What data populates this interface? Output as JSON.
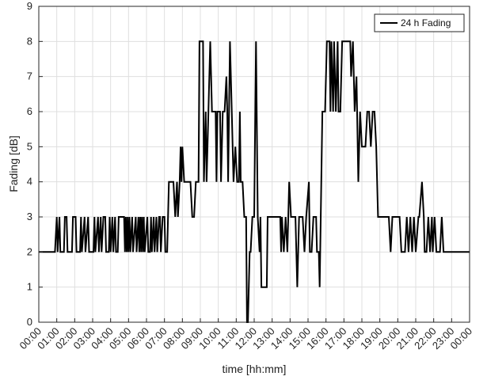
{
  "chart_data": {
    "type": "line",
    "xlabel": "time [hh:mm]",
    "ylabel": "Fading [dB]",
    "xlim": [
      0,
      24
    ],
    "ylim": [
      0,
      9
    ],
    "grid": true,
    "legend": {
      "position": "top-right"
    },
    "x_ticks": [
      "00:00",
      "01:00",
      "02:00",
      "03:00",
      "04:00",
      "05:00",
      "06:00",
      "07:00",
      "08:00",
      "09:00",
      "10:00",
      "11:00",
      "12:00",
      "13:00",
      "14:00",
      "15:00",
      "16:00",
      "17:00",
      "18:00",
      "19:00",
      "20:00",
      "21:00",
      "22:00",
      "23:00",
      "00:00"
    ],
    "y_ticks": [
      "0",
      "1",
      "2",
      "3",
      "4",
      "5",
      "6",
      "7",
      "8",
      "9"
    ],
    "series": [
      {
        "name": "24 h Fading",
        "color": "#000000",
        "points": [
          [
            0.0,
            2
          ],
          [
            0.9,
            2
          ],
          [
            1.0,
            3
          ],
          [
            1.05,
            2
          ],
          [
            1.15,
            3
          ],
          [
            1.2,
            2
          ],
          [
            1.4,
            2
          ],
          [
            1.45,
            3
          ],
          [
            1.55,
            3
          ],
          [
            1.6,
            2
          ],
          [
            1.85,
            2
          ],
          [
            1.9,
            3
          ],
          [
            2.05,
            3
          ],
          [
            2.1,
            2
          ],
          [
            2.3,
            2
          ],
          [
            2.35,
            3
          ],
          [
            2.4,
            2
          ],
          [
            2.55,
            3
          ],
          [
            2.6,
            2
          ],
          [
            2.75,
            3
          ],
          [
            2.8,
            2
          ],
          [
            3.05,
            2
          ],
          [
            3.1,
            3
          ],
          [
            3.15,
            2
          ],
          [
            3.3,
            3
          ],
          [
            3.35,
            2
          ],
          [
            3.45,
            3
          ],
          [
            3.5,
            2
          ],
          [
            3.6,
            3
          ],
          [
            3.7,
            3
          ],
          [
            3.75,
            2
          ],
          [
            3.9,
            2
          ],
          [
            3.95,
            3
          ],
          [
            4.0,
            2
          ],
          [
            4.1,
            3
          ],
          [
            4.15,
            2
          ],
          [
            4.25,
            3
          ],
          [
            4.3,
            2
          ],
          [
            4.4,
            2
          ],
          [
            4.45,
            3
          ],
          [
            4.75,
            3
          ],
          [
            4.8,
            2
          ],
          [
            4.85,
            3
          ],
          [
            4.9,
            2
          ],
          [
            4.95,
            3
          ],
          [
            5.0,
            2
          ],
          [
            5.05,
            3
          ],
          [
            5.1,
            2
          ],
          [
            5.2,
            3
          ],
          [
            5.25,
            2
          ],
          [
            5.4,
            3
          ],
          [
            5.45,
            2
          ],
          [
            5.55,
            3
          ],
          [
            5.6,
            2
          ],
          [
            5.65,
            3
          ],
          [
            5.7,
            2
          ],
          [
            5.75,
            3
          ],
          [
            5.8,
            2
          ],
          [
            5.85,
            3
          ],
          [
            5.9,
            2
          ],
          [
            6.05,
            3
          ],
          [
            6.1,
            2
          ],
          [
            6.2,
            2
          ],
          [
            6.25,
            3
          ],
          [
            6.3,
            2
          ],
          [
            6.4,
            3
          ],
          [
            6.45,
            2
          ],
          [
            6.55,
            3
          ],
          [
            6.6,
            2
          ],
          [
            6.7,
            3
          ],
          [
            6.75,
            3
          ],
          [
            6.8,
            2
          ],
          [
            6.9,
            3
          ],
          [
            7.0,
            3
          ],
          [
            7.05,
            2
          ],
          [
            7.15,
            2
          ],
          [
            7.25,
            4
          ],
          [
            7.5,
            4
          ],
          [
            7.6,
            3
          ],
          [
            7.7,
            4
          ],
          [
            7.75,
            3
          ],
          [
            7.85,
            4
          ],
          [
            7.9,
            5
          ],
          [
            7.95,
            4
          ],
          [
            8.0,
            5
          ],
          [
            8.1,
            4
          ],
          [
            8.45,
            4
          ],
          [
            8.55,
            3
          ],
          [
            8.65,
            3
          ],
          [
            8.75,
            4
          ],
          [
            8.9,
            4
          ],
          [
            8.95,
            8
          ],
          [
            9.15,
            8
          ],
          [
            9.2,
            4
          ],
          [
            9.3,
            6
          ],
          [
            9.35,
            4
          ],
          [
            9.45,
            6
          ],
          [
            9.55,
            8
          ],
          [
            9.65,
            6
          ],
          [
            9.85,
            6
          ],
          [
            9.9,
            4
          ],
          [
            9.95,
            6
          ],
          [
            10.1,
            6
          ],
          [
            10.15,
            4
          ],
          [
            10.25,
            6
          ],
          [
            10.35,
            6
          ],
          [
            10.45,
            7
          ],
          [
            10.5,
            6
          ],
          [
            10.55,
            4
          ],
          [
            10.65,
            8
          ],
          [
            10.75,
            6
          ],
          [
            10.85,
            4
          ],
          [
            10.95,
            5
          ],
          [
            11.05,
            4
          ],
          [
            11.15,
            4
          ],
          [
            11.2,
            6
          ],
          [
            11.25,
            4
          ],
          [
            11.35,
            4
          ],
          [
            11.45,
            3
          ],
          [
            11.55,
            3
          ],
          [
            11.6,
            0
          ],
          [
            11.65,
            0
          ],
          [
            11.75,
            2
          ],
          [
            11.8,
            2
          ],
          [
            11.9,
            3
          ],
          [
            12.0,
            3
          ],
          [
            12.1,
            8
          ],
          [
            12.2,
            3
          ],
          [
            12.3,
            2
          ],
          [
            12.35,
            3
          ],
          [
            12.4,
            1
          ],
          [
            12.5,
            1
          ],
          [
            12.7,
            1
          ],
          [
            12.75,
            3
          ],
          [
            13.2,
            3
          ],
          [
            13.3,
            3
          ],
          [
            13.45,
            3
          ],
          [
            13.5,
            2
          ],
          [
            13.55,
            3
          ],
          [
            13.65,
            2
          ],
          [
            13.75,
            3
          ],
          [
            13.85,
            2
          ],
          [
            13.95,
            4
          ],
          [
            14.05,
            3
          ],
          [
            14.15,
            3
          ],
          [
            14.3,
            3
          ],
          [
            14.4,
            1
          ],
          [
            14.5,
            3
          ],
          [
            14.7,
            3
          ],
          [
            14.8,
            2
          ],
          [
            14.9,
            3
          ],
          [
            15.05,
            4
          ],
          [
            15.1,
            2
          ],
          [
            15.2,
            2
          ],
          [
            15.3,
            3
          ],
          [
            15.45,
            3
          ],
          [
            15.5,
            2
          ],
          [
            15.6,
            2
          ],
          [
            15.65,
            1
          ],
          [
            15.8,
            6
          ],
          [
            15.95,
            6
          ],
          [
            16.05,
            8
          ],
          [
            16.2,
            8
          ],
          [
            16.25,
            6
          ],
          [
            16.3,
            8
          ],
          [
            16.4,
            6
          ],
          [
            16.45,
            8
          ],
          [
            16.55,
            6
          ],
          [
            16.65,
            8
          ],
          [
            16.7,
            6
          ],
          [
            16.8,
            6
          ],
          [
            16.9,
            8
          ],
          [
            17.05,
            8
          ],
          [
            17.1,
            8
          ],
          [
            17.35,
            8
          ],
          [
            17.4,
            7
          ],
          [
            17.5,
            8
          ],
          [
            17.6,
            6
          ],
          [
            17.7,
            7
          ],
          [
            17.8,
            4
          ],
          [
            17.9,
            6
          ],
          [
            18.0,
            5
          ],
          [
            18.2,
            5
          ],
          [
            18.3,
            6
          ],
          [
            18.4,
            6
          ],
          [
            18.5,
            5
          ],
          [
            18.6,
            6
          ],
          [
            18.7,
            6
          ],
          [
            18.8,
            5
          ],
          [
            18.9,
            3
          ],
          [
            19.0,
            3
          ],
          [
            19.5,
            3
          ],
          [
            19.6,
            2
          ],
          [
            19.7,
            3
          ],
          [
            20.0,
            3
          ],
          [
            20.1,
            3
          ],
          [
            20.2,
            2
          ],
          [
            20.4,
            2
          ],
          [
            20.5,
            3
          ],
          [
            20.6,
            2
          ],
          [
            20.7,
            3
          ],
          [
            20.8,
            2
          ],
          [
            20.9,
            3
          ],
          [
            21.0,
            2
          ],
          [
            21.15,
            3
          ],
          [
            21.2,
            3
          ],
          [
            21.35,
            4
          ],
          [
            21.45,
            3
          ],
          [
            21.5,
            2
          ],
          [
            21.6,
            2
          ],
          [
            21.7,
            3
          ],
          [
            21.8,
            2
          ],
          [
            21.9,
            3
          ],
          [
            21.95,
            2
          ],
          [
            22.05,
            3
          ],
          [
            22.15,
            2
          ],
          [
            22.35,
            2
          ],
          [
            22.45,
            3
          ],
          [
            22.55,
            2
          ],
          [
            22.7,
            2
          ],
          [
            22.8,
            2
          ],
          [
            24.0,
            2
          ]
        ]
      }
    ]
  }
}
